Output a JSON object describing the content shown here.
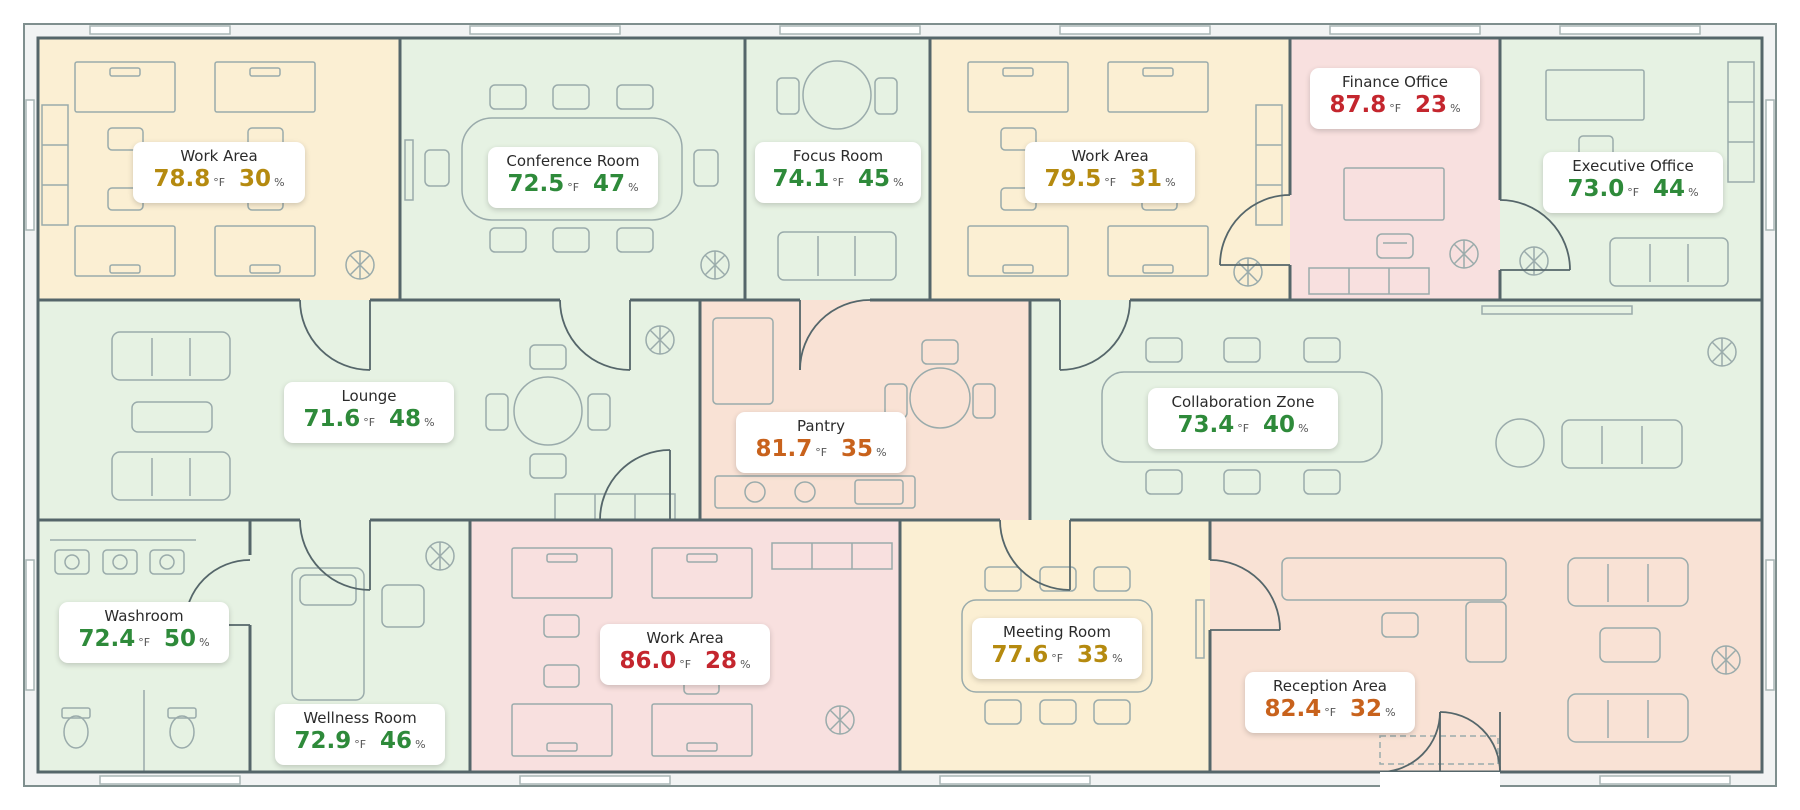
{
  "units": {
    "temp": "°F",
    "humidity": "%"
  },
  "colors": {
    "comfortable": "#2e8a3a",
    "warm": "#b58a0f",
    "hot": "#c8621c",
    "very_hot": "#c4262e",
    "fill_comfortable": "#e6f2e3",
    "fill_warm": "#fbefd3",
    "fill_hot": "#f9e2d5",
    "fill_very_hot": "#f8e0df"
  },
  "rooms": [
    {
      "name": "Work Area",
      "temp": "78.8",
      "humidity": "30",
      "status": "warm"
    },
    {
      "name": "Conference Room",
      "temp": "72.5",
      "humidity": "47",
      "status": "comfortable"
    },
    {
      "name": "Focus Room",
      "temp": "74.1",
      "humidity": "45",
      "status": "comfortable"
    },
    {
      "name": "Work Area",
      "temp": "79.5",
      "humidity": "31",
      "status": "warm"
    },
    {
      "name": "Finance Office",
      "temp": "87.8",
      "humidity": "23",
      "status": "very_hot"
    },
    {
      "name": "Executive Office",
      "temp": "73.0",
      "humidity": "44",
      "status": "comfortable"
    },
    {
      "name": "Lounge",
      "temp": "71.6",
      "humidity": "48",
      "status": "comfortable"
    },
    {
      "name": "Pantry",
      "temp": "81.7",
      "humidity": "35",
      "status": "hot"
    },
    {
      "name": "Collaboration Zone",
      "temp": "73.4",
      "humidity": "40",
      "status": "comfortable"
    },
    {
      "name": "Washroom",
      "temp": "72.4",
      "humidity": "50",
      "status": "comfortable"
    },
    {
      "name": "Wellness Room",
      "temp": "72.9",
      "humidity": "46",
      "status": "comfortable"
    },
    {
      "name": "Work Area",
      "temp": "86.0",
      "humidity": "28",
      "status": "very_hot"
    },
    {
      "name": "Meeting Room",
      "temp": "77.6",
      "humidity": "33",
      "status": "warm"
    },
    {
      "name": "Reception Area",
      "temp": "82.4",
      "humidity": "32",
      "status": "hot"
    }
  ]
}
